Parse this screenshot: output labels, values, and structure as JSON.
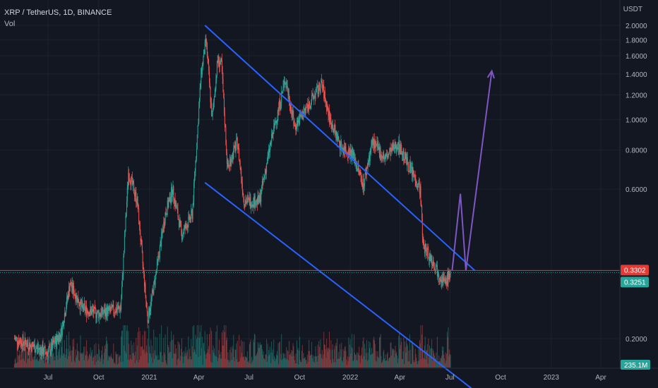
{
  "header": {
    "symbol_line": "XRP / TetherUS, 1D, BINANCE",
    "volume_label": "Vol",
    "currency": "USDT"
  },
  "badges": {
    "last_price": "0.3302",
    "close_price": "0.3251",
    "volume": "235.1M"
  },
  "colors": {
    "background": "#131722",
    "up": "#26a69a",
    "down": "#ef5350",
    "trendline": "#2962ff",
    "projection": "#7e57c2",
    "last_price_badge": "#e53935",
    "close_badge": "#26a69a"
  },
  "chart_data": {
    "type": "candlestick",
    "title": "XRP / TetherUS, 1D, BINANCE",
    "ylabel": "USDT",
    "ylim": [
      0.12,
      2.1
    ],
    "y_ticks": [
      "2.0000",
      "1.8000",
      "1.6000",
      "1.4000",
      "1.2000",
      "1.0000",
      "0.8000",
      "0.6000",
      "0.2000"
    ],
    "x_ticks": [
      "Jul",
      "Oct",
      "2021",
      "Apr",
      "Jul",
      "Oct",
      "2022",
      "Apr",
      "Jul",
      "Oct",
      "2023",
      "Apr"
    ],
    "x_tick_dates": [
      "2020-07-01",
      "2020-10-01",
      "2021-01-01",
      "2021-04-01",
      "2021-07-01",
      "2021-10-01",
      "2022-01-01",
      "2022-04-01",
      "2022-07-01",
      "2022-10-01",
      "2023-01-01",
      "2023-04-01"
    ],
    "price_path": [
      [
        "2020-05-01",
        0.2
      ],
      [
        "2020-06-01",
        0.19
      ],
      [
        "2020-07-01",
        0.18
      ],
      [
        "2020-07-25",
        0.21
      ],
      [
        "2020-08-10",
        0.3
      ],
      [
        "2020-09-01",
        0.25
      ],
      [
        "2020-10-01",
        0.24
      ],
      [
        "2020-11-10",
        0.25
      ],
      [
        "2020-11-24",
        0.68
      ],
      [
        "2020-12-10",
        0.55
      ],
      [
        "2020-12-29",
        0.23
      ],
      [
        "2021-01-10",
        0.3
      ],
      [
        "2021-01-30",
        0.5
      ],
      [
        "2021-02-12",
        0.6
      ],
      [
        "2021-03-01",
        0.43
      ],
      [
        "2021-03-20",
        0.5
      ],
      [
        "2021-04-05",
        1.4
      ],
      [
        "2021-04-14",
        1.8
      ],
      [
        "2021-04-25",
        1.0
      ],
      [
        "2021-05-05",
        1.55
      ],
      [
        "2021-05-12",
        1.5
      ],
      [
        "2021-05-23",
        0.7
      ],
      [
        "2021-06-10",
        0.85
      ],
      [
        "2021-06-22",
        0.55
      ],
      [
        "2021-07-20",
        0.55
      ],
      [
        "2021-08-10",
        0.85
      ],
      [
        "2021-09-05",
        1.35
      ],
      [
        "2021-09-22",
        0.95
      ],
      [
        "2021-10-15",
        1.1
      ],
      [
        "2021-11-10",
        1.3
      ],
      [
        "2021-11-25",
        1.0
      ],
      [
        "2021-12-15",
        0.82
      ],
      [
        "2022-01-05",
        0.78
      ],
      [
        "2022-01-25",
        0.62
      ],
      [
        "2022-02-10",
        0.85
      ],
      [
        "2022-03-05",
        0.75
      ],
      [
        "2022-03-28",
        0.84
      ],
      [
        "2022-04-20",
        0.7
      ],
      [
        "2022-05-08",
        0.6
      ],
      [
        "2022-05-13",
        0.4
      ],
      [
        "2022-06-13",
        0.32
      ],
      [
        "2022-06-22",
        0.3
      ],
      [
        "2022-07-02",
        0.3251
      ]
    ],
    "annotations": {
      "upper_trendline": [
        [
          "2021-04-12",
          2.0
        ],
        [
          "2022-08-15",
          0.33
        ]
      ],
      "lower_trendline": [
        [
          "2021-04-12",
          0.63
        ],
        [
          "2022-08-30",
          0.13
        ]
      ],
      "projection_path": [
        [
          "2022-07-05",
          0.33
        ],
        [
          "2022-07-20",
          0.58
        ],
        [
          "2022-07-30",
          0.33
        ],
        [
          "2022-09-15",
          1.43
        ]
      ]
    },
    "last_price_line": 0.3302
  }
}
